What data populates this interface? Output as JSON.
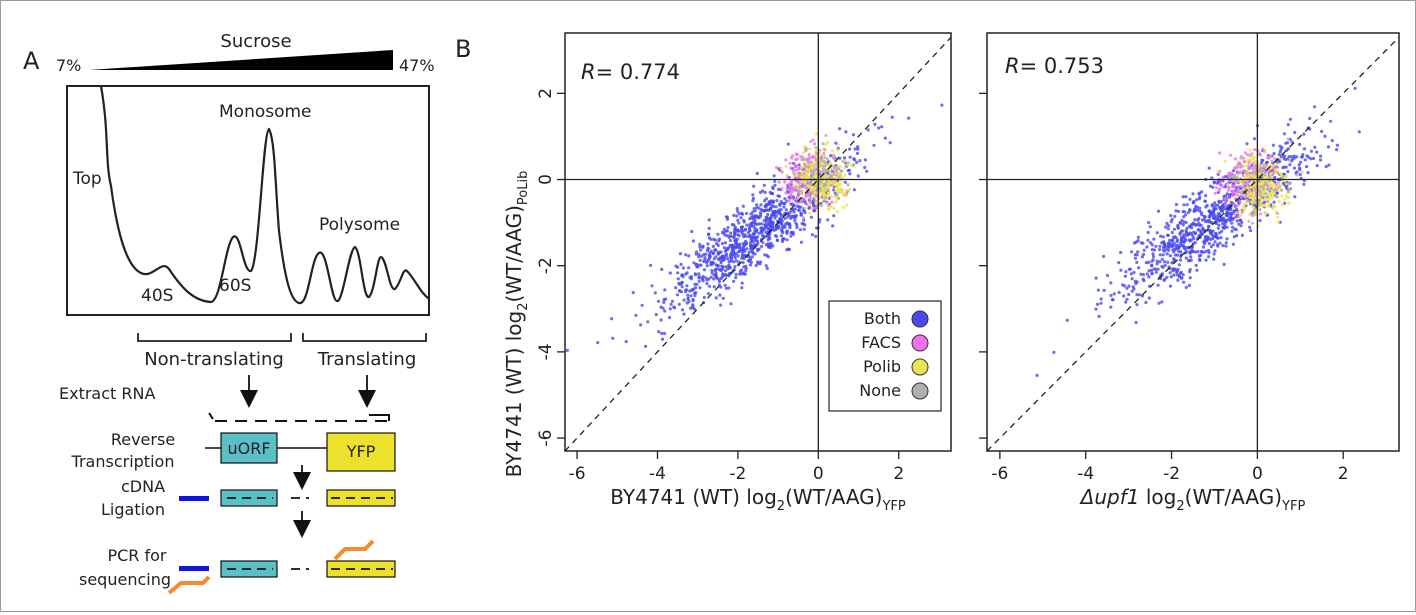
{
  "panelA": {
    "label": "A",
    "gradient": {
      "title": "Sucrose",
      "low": "7%",
      "high": "47%"
    },
    "profile_labels": {
      "top": "Top",
      "monosome": "Monosome",
      "polysome": "Polysome",
      "s40": "40S",
      "s60": "60S"
    },
    "fractions": {
      "non_translating": "Non-translating",
      "translating": "Translating"
    },
    "steps": {
      "extract": "Extract RNA",
      "rt1": "Reverse",
      "rt2": "Transcription",
      "lig1": "cDNA",
      "lig2": "Ligation",
      "pcr1": "PCR for",
      "pcr2": "sequencing"
    },
    "boxes": {
      "uorf": "uORF",
      "yfp": "YFP"
    },
    "colors": {
      "uorf": "#5bbfc8",
      "yfp": "#ece22e",
      "adapter": "#1014e0",
      "primer": "#f58b2a"
    }
  },
  "panelB": {
    "label": "B",
    "ylabel": {
      "pre": "BY4741 (WT) log",
      "sub": "2",
      "mid": "(WT/AAG)",
      "sub2": "PoLib"
    },
    "plots": [
      {
        "r_label": "R",
        "r_value": "= 0.774",
        "xlabel": {
          "pre": "BY4741 (WT) log",
          "sub": "2",
          "mid": "(WT/AAG)",
          "sub2": "YFP"
        }
      },
      {
        "r_label": "R",
        "r_value": "= 0.753",
        "xlabel": {
          "pre": "Δupf1",
          "pre2": " log",
          "sub": "2",
          "mid": "(WT/AAG)",
          "sub2": "YFP"
        }
      }
    ],
    "legend": [
      {
        "name": "Both",
        "color": "#4a4af0"
      },
      {
        "name": "FACS",
        "color": "#f070ee"
      },
      {
        "name": "Polib",
        "color": "#ece552"
      },
      {
        "name": "None",
        "color": "#b0b0b0"
      }
    ]
  },
  "chart_data": [
    {
      "type": "scatter",
      "x_ticks": [
        -6,
        -4,
        -2,
        0,
        2
      ],
      "y_ticks": [
        2,
        0,
        -2,
        -4,
        -6
      ],
      "xlim": [
        -6.3,
        3.3
      ],
      "ylim": [
        -6.3,
        3.4
      ],
      "reference_lines": [
        "x=0",
        "y=0",
        "y=x (dashed)"
      ],
      "correlation": 0.774,
      "legend_position": "bottom-right",
      "series": [
        {
          "name": "Both",
          "clusters": [
            {
              "cx": -1.5,
              "cy": -1.2,
              "n": 1000,
              "trend": true
            }
          ]
        },
        {
          "name": "FACS",
          "clusters": [
            {
              "cx": -0.2,
              "cy": 0.05,
              "n": 220
            }
          ]
        },
        {
          "name": "Polib",
          "clusters": [
            {
              "cx": 0.1,
              "cy": 0.0,
              "n": 260
            }
          ]
        },
        {
          "name": "None",
          "clusters": [
            {
              "cx": 0.0,
              "cy": 0.1,
              "n": 80
            }
          ]
        }
      ]
    },
    {
      "type": "scatter",
      "x_ticks": [
        -6,
        -4,
        -2,
        0,
        2
      ],
      "y_ticks": [
        2,
        0,
        -2,
        -4,
        -6
      ],
      "xlim": [
        -6.3,
        3.3
      ],
      "ylim": [
        -6.3,
        3.4
      ],
      "reference_lines": [
        "x=0",
        "y=0",
        "y=x (dashed)"
      ],
      "correlation": 0.753,
      "series": [
        {
          "name": "Both",
          "clusters": [
            {
              "cx": -1.0,
              "cy": -0.9,
              "n": 900,
              "trend": true
            }
          ]
        },
        {
          "name": "FACS",
          "clusters": [
            {
              "cx": -0.2,
              "cy": 0.0,
              "n": 200
            }
          ]
        },
        {
          "name": "Polib",
          "clusters": [
            {
              "cx": 0.1,
              "cy": -0.2,
              "n": 240
            }
          ]
        },
        {
          "name": "None",
          "clusters": [
            {
              "cx": 0.0,
              "cy": 0.0,
              "n": 60
            }
          ]
        }
      ]
    }
  ]
}
